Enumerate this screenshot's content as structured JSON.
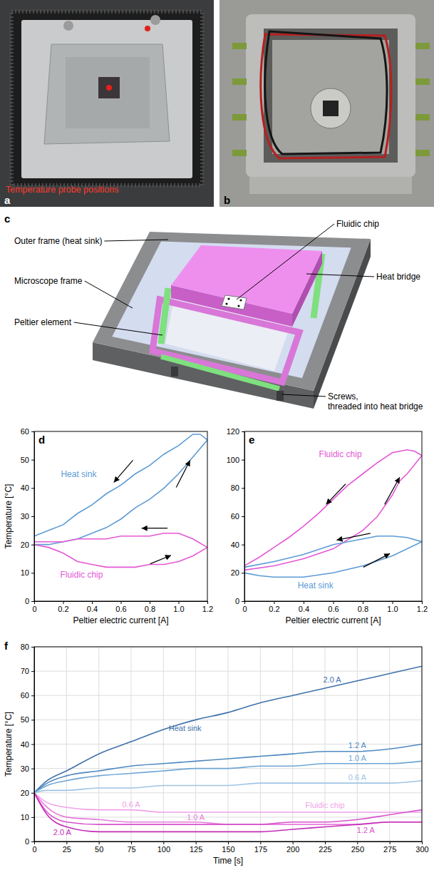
{
  "photos": [
    {
      "label": "a",
      "caption": "Temperature probe positions"
    },
    {
      "label": "b"
    }
  ],
  "diagram": {
    "label": "c",
    "callouts": [
      {
        "lines": [
          "Outer frame (heat sink)"
        ]
      },
      {
        "lines": [
          "Microscope frame"
        ]
      },
      {
        "lines": [
          "Peltier element"
        ]
      },
      {
        "lines": [
          "Fluidic chip"
        ]
      },
      {
        "lines": [
          "Heat bridge"
        ]
      },
      {
        "lines": [
          "Screws,",
          "threaded into heat bridge"
        ]
      }
    ]
  },
  "chart_data": [
    {
      "type": "line",
      "panel": "d",
      "x_label": "Peltier electric current [A]",
      "y_label": "Temperature [°C]",
      "xlim": [
        0,
        1.2
      ],
      "ylim": [
        0,
        60
      ],
      "xticks": [
        0,
        0.2,
        0.4,
        0.6,
        0.8,
        {
          "value": 1,
          "label": "1.0"
        },
        1.2
      ],
      "yticks": [
        0,
        10,
        20,
        30,
        40,
        50,
        60
      ],
      "grid": false,
      "series": [
        {
          "name": "Heat sink",
          "color": "#5b9bd5",
          "x": [
            0,
            0.1,
            0.2,
            0.3,
            0.4,
            0.5,
            0.6,
            0.7,
            0.8,
            0.9,
            1.0,
            1.1,
            1.2,
            1.15,
            1.1,
            1.0,
            0.9,
            0.8,
            0.7,
            0.6,
            0.5,
            0.4,
            0.3,
            0.2,
            0.1,
            0
          ],
          "values": [
            20,
            20,
            21,
            22,
            24,
            26,
            29,
            33,
            36,
            40,
            45,
            51,
            57,
            59,
            59,
            55,
            52,
            48,
            45,
            41,
            38,
            34,
            31,
            27,
            25,
            23
          ]
        },
        {
          "name": "Fluidic chip",
          "color": "#e458d6",
          "x": [
            0,
            0.1,
            0.2,
            0.3,
            0.4,
            0.5,
            0.6,
            0.7,
            0.8,
            0.9,
            1.0,
            1.1,
            1.2,
            1.1,
            1.0,
            0.9,
            0.8,
            0.7,
            0.6,
            0.5,
            0.4,
            0.3,
            0.2,
            0.1,
            0
          ],
          "values": [
            20,
            19,
            17,
            14,
            13,
            12,
            12,
            12,
            13,
            13,
            14,
            16,
            19,
            22,
            24,
            24,
            23,
            23,
            23,
            22,
            22,
            22,
            21,
            21,
            21
          ]
        }
      ]
    },
    {
      "type": "line",
      "panel": "e",
      "x_label": "Peltier electric current [A]",
      "xlim": [
        0,
        1.2
      ],
      "ylim": [
        0,
        120
      ],
      "xticks": [
        0,
        0.2,
        0.4,
        0.6,
        0.8,
        {
          "value": 1,
          "label": "1.0"
        },
        1.2
      ],
      "yticks": [
        0,
        20,
        40,
        60,
        80,
        100,
        120
      ],
      "grid": false,
      "series": [
        {
          "name": "Fluidic chip",
          "color": "#e458d6",
          "x": [
            0,
            0.2,
            0.4,
            0.6,
            0.8,
            0.9,
            1.0,
            1.05,
            1.1,
            1.2,
            1.15,
            1.1,
            1.0,
            0.9,
            0.8,
            0.7,
            0.6,
            0.5,
            0.4,
            0.3,
            0.2,
            0.1,
            0
          ],
          "values": [
            22,
            25,
            30,
            37,
            50,
            60,
            75,
            85,
            90,
            103,
            106,
            107,
            105,
            98,
            90,
            82,
            72,
            62,
            53,
            45,
            38,
            31,
            25
          ]
        },
        {
          "name": "Heat sink",
          "color": "#5b9bd5",
          "x": [
            0,
            0.1,
            0.2,
            0.4,
            0.6,
            0.8,
            1.0,
            1.2,
            1.1,
            1.0,
            0.9,
            0.8,
            0.6,
            0.4,
            0.2,
            0
          ],
          "values": [
            20,
            18,
            17,
            17,
            20,
            25,
            32,
            42,
            45,
            46,
            46,
            44,
            40,
            33,
            28,
            24
          ]
        }
      ]
    },
    {
      "type": "line",
      "panel": "f",
      "x_label": "Time [s]",
      "y_label": "Temperature [°C]",
      "xlim": [
        0,
        300
      ],
      "ylim": [
        0,
        80
      ],
      "xticks": [
        0,
        25,
        50,
        75,
        100,
        125,
        150,
        175,
        200,
        225,
        250,
        275,
        300
      ],
      "yticks": [
        0,
        10,
        20,
        30,
        40,
        50,
        60,
        70,
        80
      ],
      "grid": true,
      "x": [
        0,
        10,
        25,
        50,
        75,
        100,
        125,
        150,
        175,
        200,
        225,
        250,
        275,
        300
      ],
      "groups": [
        {
          "name": "Heat sink",
          "series": [
            {
              "name": "2.0 A",
              "color": "#3f72aa",
              "values": [
                20,
                25,
                29,
                36,
                41,
                46,
                50,
                53,
                57,
                60,
                63,
                66,
                69,
                72
              ]
            },
            {
              "name": "1.2 A",
              "color": "#4f89c2",
              "values": [
                20,
                24,
                27,
                29,
                31,
                32,
                33,
                34,
                35,
                36,
                37,
                37,
                38,
                40
              ]
            },
            {
              "name": "1.0 A",
              "color": "#6fa5d4",
              "values": [
                20,
                23,
                25,
                27,
                28,
                29,
                30,
                30,
                31,
                31,
                32,
                32,
                32,
                33
              ]
            },
            {
              "name": "0.6 A",
              "color": "#9fc4e4",
              "values": [
                20,
                21,
                21,
                22,
                22,
                23,
                23,
                23,
                24,
                24,
                24,
                24,
                24,
                25
              ]
            }
          ]
        },
        {
          "name": "Fluidic chip",
          "series": [
            {
              "name": "0.6 A",
              "color": "#f0a2e8",
              "values": [
                20,
                16,
                14,
                13,
                13,
                12,
                12,
                12,
                12,
                12,
                12,
                12,
                12,
                12
              ]
            },
            {
              "name": "1.0 A",
              "color": "#e77bdd",
              "values": [
                20,
                14,
                10,
                9,
                8,
                8,
                8,
                7,
                7,
                7,
                7,
                7,
                8,
                8
              ]
            },
            {
              "name": "1.2 A",
              "color": "#d852cc",
              "values": [
                20,
                12,
                8,
                7,
                7,
                7,
                7,
                7,
                7,
                8,
                8,
                9,
                11,
                13
              ]
            },
            {
              "name": "2.0 A",
              "color": "#c42cb6",
              "values": [
                20,
                11,
                6,
                4,
                4,
                4,
                4,
                4,
                4,
                5,
                6,
                7,
                8,
                8
              ]
            }
          ]
        }
      ]
    }
  ]
}
